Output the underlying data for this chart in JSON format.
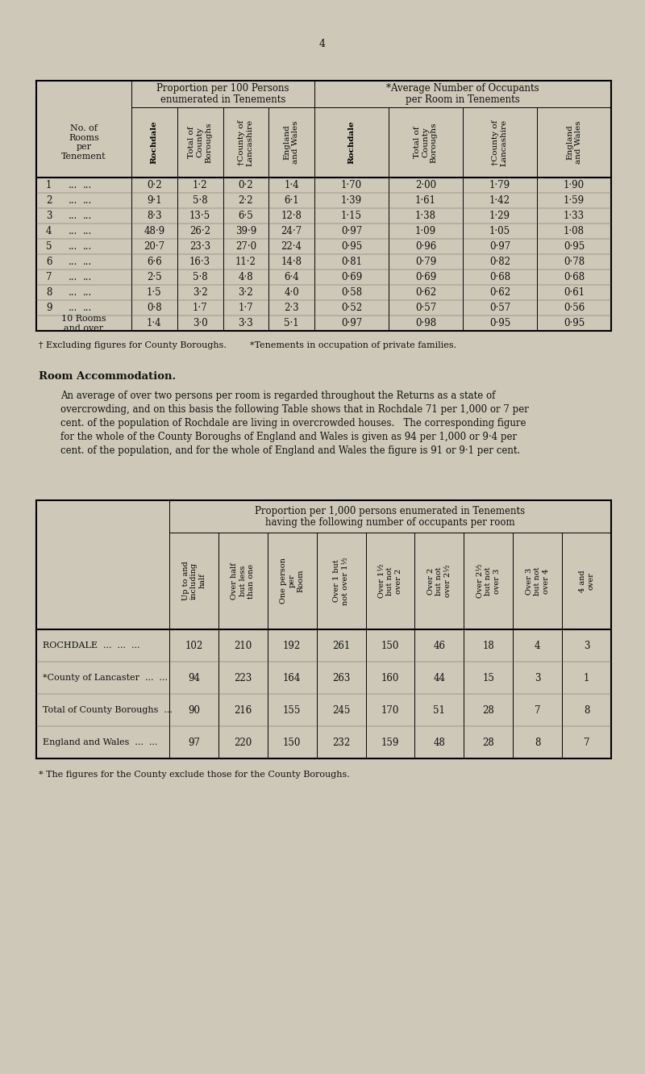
{
  "page_number": "4",
  "bg_color": "#cdc8b8",
  "table1": {
    "col_headers": [
      "Rochdale",
      "Total of\nCounty\nBoroughs",
      "†County of\nLancashire",
      "England\nand Wales",
      "Rochdale",
      "Total of\nCounty\nBoroughs",
      "†County of\nLancashire",
      "England\nand Wales"
    ],
    "rows": [
      [
        "1",
        "0·2",
        "1·2",
        "0·2",
        "1·4",
        "1·70",
        "2·00",
        "1·79",
        "1·90"
      ],
      [
        "2",
        "9·1",
        "5·8",
        "2·2",
        "6·1",
        "1·39",
        "1·61",
        "1·42",
        "1·59"
      ],
      [
        "3",
        "8·3",
        "13·5",
        "6·5",
        "12·8",
        "1·15",
        "1·38",
        "1·29",
        "1·33"
      ],
      [
        "4",
        "48·9",
        "26·2",
        "39·9",
        "24·7",
        "0·97",
        "1·09",
        "1·05",
        "1·08"
      ],
      [
        "5",
        "20·7",
        "23·3",
        "27·0",
        "22·4",
        "0·95",
        "0·96",
        "0·97",
        "0·95"
      ],
      [
        "6",
        "6·6",
        "16·3",
        "11·2",
        "14·8",
        "0·81",
        "0·79",
        "0·82",
        "0·78"
      ],
      [
        "7",
        "2·5",
        "5·8",
        "4·8",
        "6·4",
        "0·69",
        "0·69",
        "0·68",
        "0·68"
      ],
      [
        "8",
        "1·5",
        "3·2",
        "3·2",
        "4·0",
        "0·58",
        "0·62",
        "0·62",
        "0·61"
      ],
      [
        "9",
        "0·8",
        "1·7",
        "1·7",
        "2·3",
        "0·52",
        "0·57",
        "0·57",
        "0·56"
      ],
      [
        "10 Rooms\nand over",
        "1·4",
        "3·0",
        "3·3",
        "5·1",
        "0·97",
        "0·98",
        "0·95",
        "0·95"
      ]
    ],
    "footnote1": "† Excluding figures for County Boroughs.",
    "footnote2": "*Tenements in occupation of private families."
  },
  "paragraph_title": "Room Accommodation.",
  "paragraph_lines": [
    "An average of over two persons per room is regarded throughout the Returns as a state of",
    "overcrowding, and on this basis the following Table shows that in Rochdale 71 per 1,000 or 7 per",
    "cent. of the population of Rochdale are living in overcrowded houses.   The corresponding figure",
    "for the whole of the County Boroughs of England and Wales is given as 94 per 1,000 or 9·4 per",
    "cent. of the population, and for the whole of England and Wales the figure is 91 or 9·1 per cent."
  ],
  "table2": {
    "title_line1": "Proportion per 1,000 persons enumerated in Tenements",
    "title_line2": "having the following number of occupants per room",
    "col_headers": [
      "Up to and\nincluding\nhalf",
      "Over half\nbut less\nthan one",
      "One person\nper\nRoom",
      "Over 1 but\nnot over 1½",
      "Over 1½\nbut not\nover 2",
      "Over 2\nbut not\nover 2½",
      "Over 2½\nbut not\nover 3",
      "Over 3\nbut not\nover 4",
      "4 and\nover"
    ],
    "rows": [
      [
        "ROCHDALE  ...  ...  ...",
        "102",
        "210",
        "192",
        "261",
        "150",
        "46",
        "18",
        "4",
        "3"
      ],
      [
        "*County of Lancaster  ...  ...",
        "94",
        "223",
        "164",
        "263",
        "160",
        "44",
        "15",
        "3",
        "1"
      ],
      [
        "Total of County Boroughs  ...",
        "90",
        "216",
        "155",
        "245",
        "170",
        "51",
        "28",
        "7",
        "8"
      ],
      [
        "England and Wales  ...  ...",
        "97",
        "220",
        "150",
        "232",
        "159",
        "48",
        "28",
        "8",
        "7"
      ]
    ],
    "footnote": "* The figures for the County exclude those for the County Boroughs."
  }
}
